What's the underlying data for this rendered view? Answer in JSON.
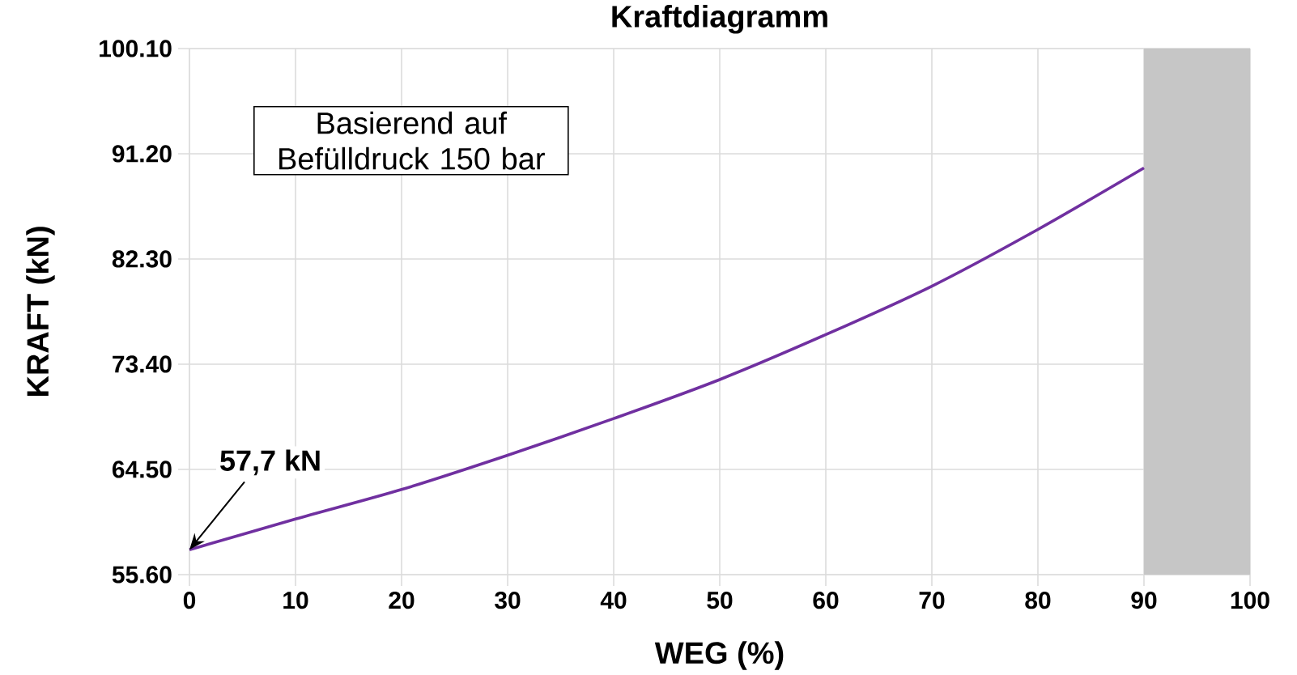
{
  "chart_data": {
    "type": "line",
    "title": "Kraftdiagramm",
    "xlabel": "WEG (%)",
    "ylabel": "KRAFT (kN)",
    "x": [
      0,
      10,
      20,
      30,
      40,
      50,
      60,
      70,
      80,
      90
    ],
    "series": [
      {
        "color": "#7030a0",
        "values": [
          57.7,
          60.3,
          62.8,
          65.7,
          68.8,
          72.1,
          75.9,
          80.0,
          84.8,
          90.0
        ]
      }
    ],
    "xlim": [
      0,
      100
    ],
    "ylim": [
      55.6,
      100.1
    ],
    "xticks": [
      0,
      10,
      20,
      30,
      40,
      50,
      60,
      70,
      80,
      90,
      100
    ],
    "yticks": [
      {
        "value": 55.6,
        "label": "55.60"
      },
      {
        "value": 64.5,
        "label": "64.50"
      },
      {
        "value": 73.4,
        "label": "73.40"
      },
      {
        "value": 82.3,
        "label": "82.30"
      },
      {
        "value": 91.2,
        "label": "91.20"
      },
      {
        "value": 100.1,
        "label": "100.10"
      }
    ],
    "grid": true,
    "line_style": "solid",
    "bands": [
      {
        "axis": "x",
        "from": 90,
        "to": 100,
        "color": "#c6c6c6"
      }
    ],
    "annotations": [
      "Basierend auf Befülldruck 150 bar",
      {
        "text": "57,7 kN",
        "x": 0,
        "y": 57.7
      }
    ]
  }
}
